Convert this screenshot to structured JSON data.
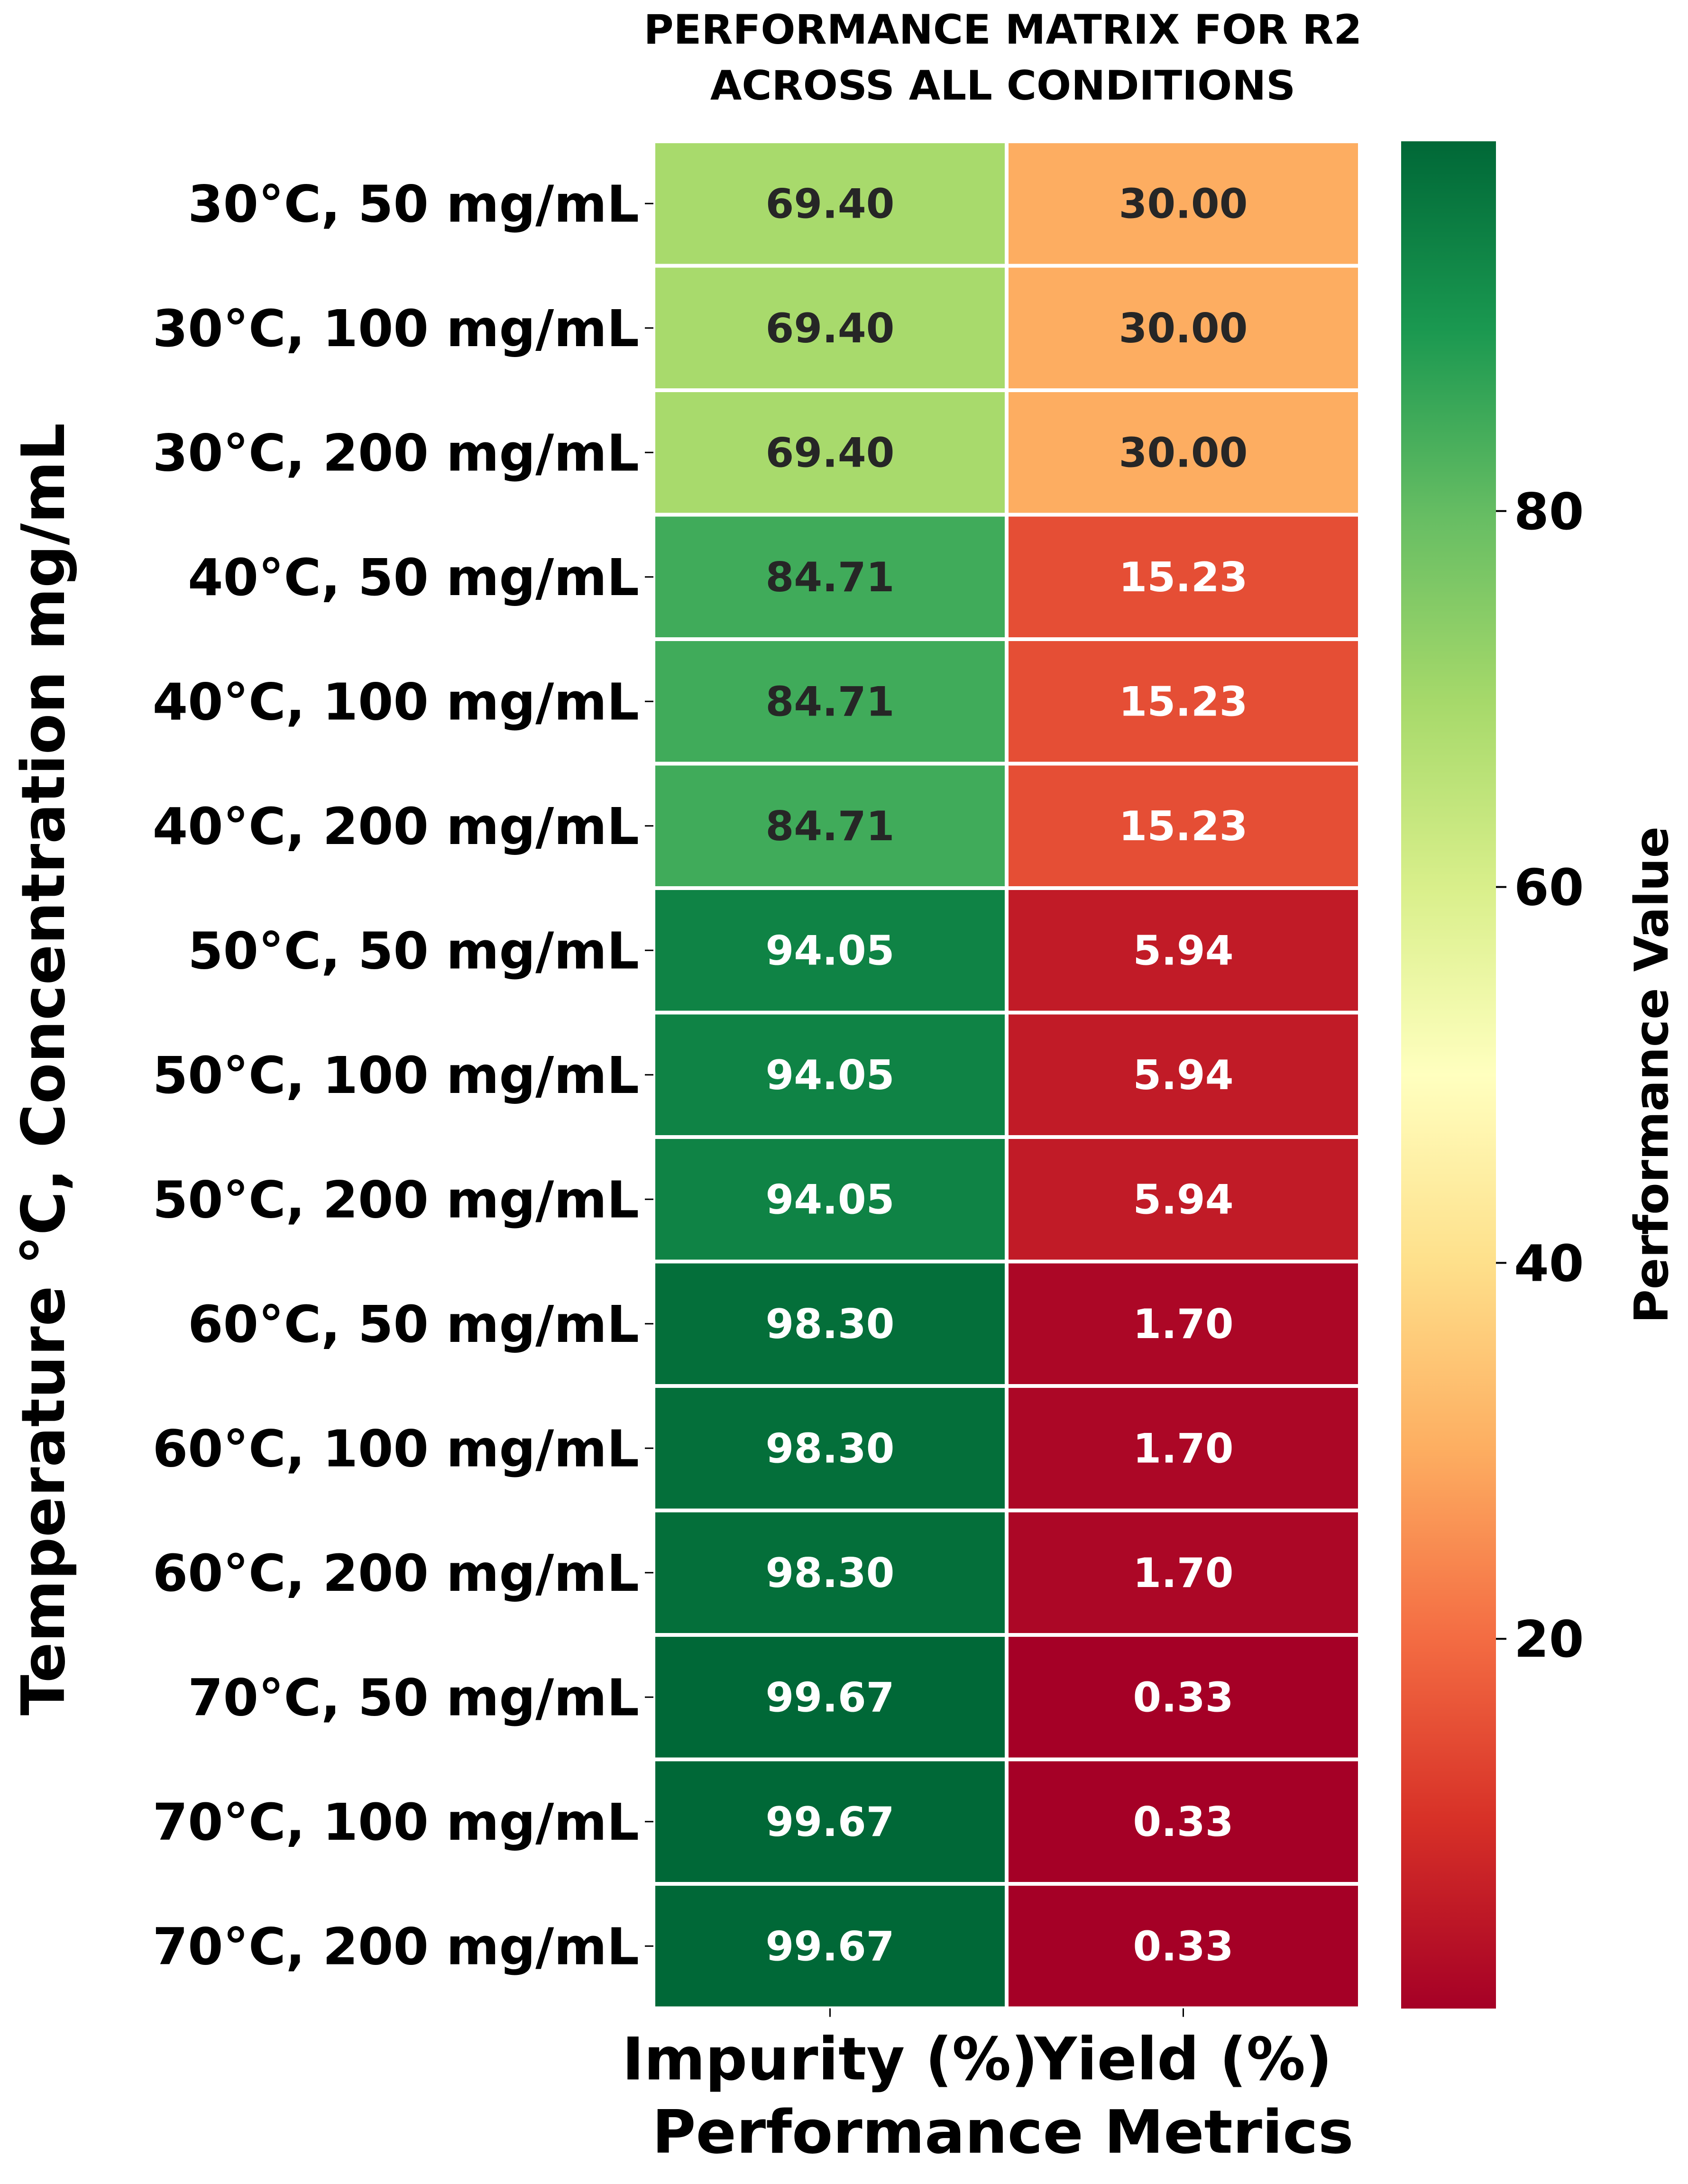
{
  "chart_data": {
    "type": "heatmap",
    "title_lines": [
      "PERFORMANCE MATRIX FOR R2",
      "ACROSS ALL CONDITIONS"
    ],
    "xlabel": "Performance Metrics",
    "ylabel": "Temperature °C, Concentration mg/mL",
    "columns": [
      "Impurity (%)",
      "Yield (%)"
    ],
    "rows": [
      "30°C, 50 mg/mL",
      "30°C, 100 mg/mL",
      "30°C, 200 mg/mL",
      "40°C, 50 mg/mL",
      "40°C, 100 mg/mL",
      "40°C, 200 mg/mL",
      "50°C, 50 mg/mL",
      "50°C, 100 mg/mL",
      "50°C, 200 mg/mL",
      "60°C, 50 mg/mL",
      "60°C, 100 mg/mL",
      "60°C, 200 mg/mL",
      "70°C, 50 mg/mL",
      "70°C, 100 mg/mL",
      "70°C, 200 mg/mL"
    ],
    "values": [
      [
        69.4,
        30.0
      ],
      [
        69.4,
        30.0
      ],
      [
        69.4,
        30.0
      ],
      [
        84.71,
        15.23
      ],
      [
        84.71,
        15.23
      ],
      [
        84.71,
        15.23
      ],
      [
        94.05,
        5.94
      ],
      [
        94.05,
        5.94
      ],
      [
        94.05,
        5.94
      ],
      [
        98.3,
        1.7
      ],
      [
        98.3,
        1.7
      ],
      [
        98.3,
        1.7
      ],
      [
        99.67,
        0.33
      ],
      [
        99.67,
        0.33
      ],
      [
        99.67,
        0.33
      ]
    ],
    "value_format": "2 decimals",
    "colormap": "RdYlGn",
    "colorbar": {
      "label": "Performance Value",
      "range": [
        0.33,
        99.67
      ],
      "ticks": [
        20,
        40,
        60,
        80
      ]
    }
  }
}
